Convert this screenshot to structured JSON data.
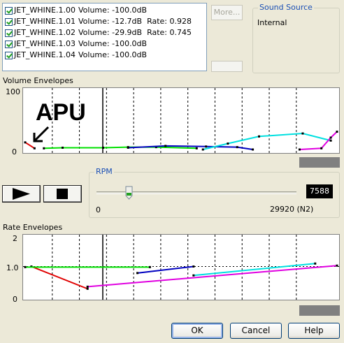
{
  "sounds": [
    {
      "name": "JET_WHINE.1.00",
      "detail": "Volume: -100.0dB"
    },
    {
      "name": "JET_WHINE.1.01",
      "detail": "Volume: -12.7dB  Rate: 0.928"
    },
    {
      "name": "JET_WHINE.1.02",
      "detail": "Volume: -29.9dB  Rate: 0.745"
    },
    {
      "name": "JET_WHINE.1.03",
      "detail": "Volume: -100.0dB"
    },
    {
      "name": "JET_WHINE.1.04",
      "detail": "Volume: -100.0dB"
    }
  ],
  "more_button": "More...",
  "sound_source": {
    "title": "Sound Source",
    "value": "Internal"
  },
  "volume_envelopes": {
    "title": "Volume Envelopes",
    "y_max": "100",
    "y_min": "0",
    "annotation": "APU"
  },
  "rpm": {
    "title": "RPM",
    "min": "0",
    "max_label": "29920 (N2)",
    "value": "7588",
    "fraction": 0.16
  },
  "rate_envelopes": {
    "title": "Rate Envelopes",
    "y_ticks": [
      "2",
      "1.0",
      "0"
    ]
  },
  "buttons": {
    "ok": "OK",
    "cancel": "Cancel",
    "help": "Help"
  },
  "colors": {
    "accent": "#1a4fb5",
    "green": "#00e000",
    "blue": "#0000c0",
    "cyan": "#00e0e0",
    "magenta": "#e000e0",
    "red": "#e00000"
  },
  "chart_data": [
    {
      "type": "line",
      "title": "Volume Envelopes",
      "ylim": [
        0,
        100
      ],
      "xlim": [
        0,
        1
      ],
      "grid": true,
      "series": [
        {
          "color": "#e00000",
          "points": [
            [
              0.0,
              12
            ],
            [
              0.03,
              2
            ]
          ]
        },
        {
          "color": "#00e000",
          "points": [
            [
              0.06,
              2
            ],
            [
              0.12,
              3
            ],
            [
              0.25,
              3
            ],
            [
              0.33,
              4
            ],
            [
              0.42,
              4
            ],
            [
              0.55,
              2
            ]
          ]
        },
        {
          "color": "#0000c0",
          "points": [
            [
              0.33,
              3
            ],
            [
              0.45,
              6
            ],
            [
              0.58,
              5
            ],
            [
              0.68,
              4
            ],
            [
              0.73,
              0
            ]
          ]
        },
        {
          "color": "#00e0e0",
          "points": [
            [
              0.57,
              0
            ],
            [
              0.65,
              10
            ],
            [
              0.75,
              22
            ],
            [
              0.89,
              27
            ],
            [
              0.98,
              15
            ]
          ]
        },
        {
          "color": "#e000e0",
          "points": [
            [
              0.88,
              0
            ],
            [
              0.95,
              2
            ],
            [
              0.98,
              20
            ],
            [
              1.0,
              30
            ]
          ]
        }
      ]
    },
    {
      "type": "line",
      "title": "Rate Envelopes",
      "ylim": [
        0,
        2
      ],
      "xlim": [
        0,
        1
      ],
      "grid": true,
      "series": [
        {
          "color": "#e00000",
          "points": [
            [
              0.02,
              1.0
            ],
            [
              0.2,
              0.25
            ]
          ]
        },
        {
          "color": "#00e000",
          "points": [
            [
              0.0,
              0.98
            ],
            [
              0.4,
              0.98
            ]
          ]
        },
        {
          "color": "#0000c0",
          "points": [
            [
              0.36,
              0.78
            ],
            [
              0.54,
              1.0
            ]
          ]
        },
        {
          "color": "#00e0e0",
          "points": [
            [
              0.54,
              0.7
            ],
            [
              0.93,
              1.1
            ]
          ]
        },
        {
          "color": "#e000e0",
          "points": [
            [
              0.2,
              0.32
            ],
            [
              1.0,
              1.03
            ]
          ]
        }
      ]
    }
  ]
}
